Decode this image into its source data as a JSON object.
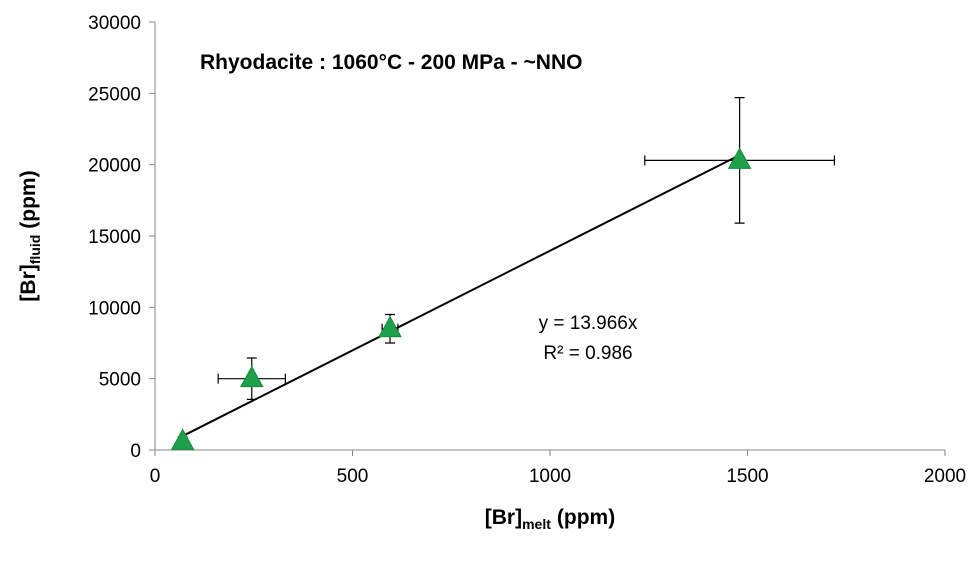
{
  "chart_data": {
    "type": "scatter",
    "title": "Rhyodacite : 1060°C - 200 MPa - ~NNO",
    "x_label": {
      "main": "[Br]",
      "sub": "melt",
      "unit": "(ppm)"
    },
    "y_label": {
      "main": "[Br]",
      "sub": "fluid",
      "unit": "(ppm)"
    },
    "x": [
      70,
      245,
      595,
      1480
    ],
    "x_err": [
      10,
      85,
      20,
      240
    ],
    "values": [
      600,
      5000,
      8500,
      20300
    ],
    "y_err": [
      300,
      1450,
      1000,
      4400
    ],
    "color": "#1fa04a",
    "trendline": {
      "slope": 13.966,
      "equation": "y = 13.966x",
      "r_squared": "R² = 0.986"
    },
    "xlim": [
      0,
      2000
    ],
    "xticks": [
      0,
      500,
      1000,
      1500,
      2000
    ],
    "ylim": [
      0,
      30000
    ],
    "yticks": [
      0,
      5000,
      10000,
      15000,
      20000,
      25000,
      30000
    ],
    "grid": false
  }
}
